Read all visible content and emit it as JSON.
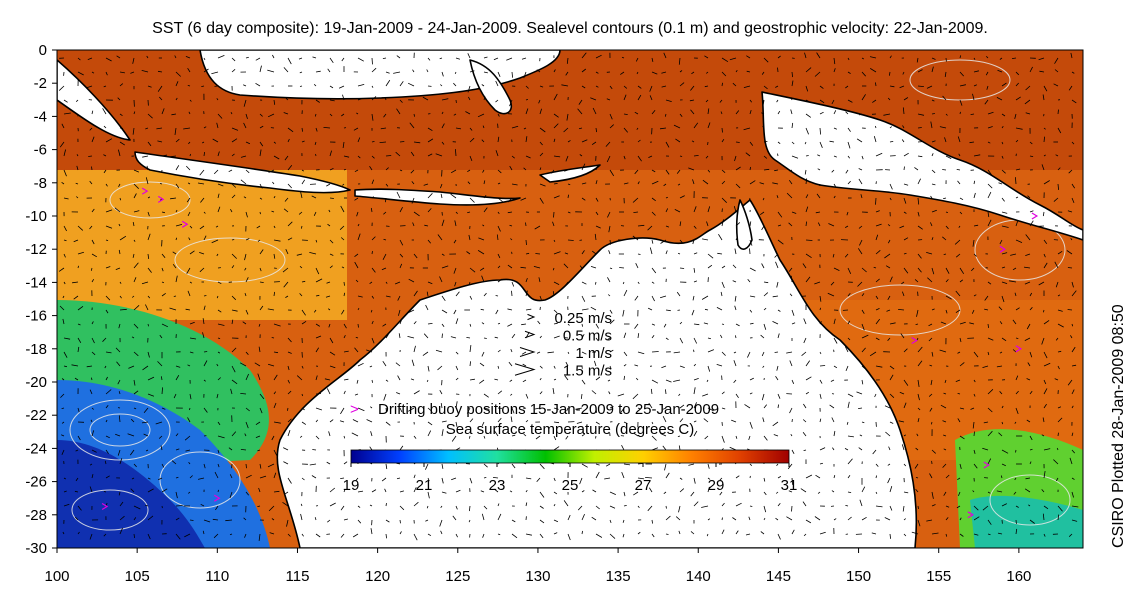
{
  "title": "SST (6 day composite): 19-Jan-2009 - 24-Jan-2009. Sealevel contours (0.1 m) and geostrophic velocity: 22-Jan-2009.",
  "side_note": "CSIRO Plotted 28-Jan-2009 08:50",
  "map": {
    "lon_range": [
      100,
      164
    ],
    "lat_range": [
      -30,
      0
    ],
    "x_ticks": [
      100,
      105,
      110,
      115,
      120,
      125,
      130,
      135,
      140,
      145,
      150,
      155,
      160
    ],
    "y_ticks": [
      0,
      -2,
      -4,
      -6,
      -8,
      -10,
      -12,
      -14,
      -16,
      -18,
      -20,
      -22,
      -24,
      -26,
      -28,
      -30
    ],
    "x_tick_labels": [
      "100",
      "105",
      "110",
      "115",
      "120",
      "125",
      "130",
      "135",
      "140",
      "145",
      "150",
      "155",
      "160"
    ],
    "y_tick_labels": [
      "0",
      "-2",
      "-4",
      "-6",
      "-8",
      "-10",
      "-12",
      "-14",
      "-16",
      "-18",
      "-20",
      "-22",
      "-24",
      "-26",
      "-28",
      "-30"
    ],
    "layers": [
      "sea-surface-temperature",
      "sea-level-contours",
      "geostrophic-velocity-arrows",
      "coastline",
      "drifting-buoys"
    ]
  },
  "velocity_legend": {
    "items": [
      {
        "label": "0.25 m/s",
        "speed": 0.25
      },
      {
        "label": "0.5 m/s",
        "speed": 0.5
      },
      {
        "label": "1 m/s",
        "speed": 1
      },
      {
        "label": "1.5 m/s",
        "speed": 1.5
      }
    ]
  },
  "buoy_legend": {
    "label": "Drifting buoy positions 15-Jan-2009 to 25-Jan-2009",
    "color": "#e000e0"
  },
  "colorbar": {
    "title": "Sea surface temperature (degrees C)",
    "range": [
      19,
      31
    ],
    "ticks": [
      19,
      21,
      23,
      25,
      27,
      29,
      31
    ],
    "tick_labels": [
      "19",
      "21",
      "23",
      "25",
      "27",
      "29",
      "31"
    ],
    "colors": [
      "#00008f",
      "#0040ff",
      "#00bfff",
      "#20e0a0",
      "#00c000",
      "#c0f000",
      "#ffd000",
      "#ff8000",
      "#e04000",
      "#a00000"
    ]
  },
  "colors": {
    "land": "#ffffff",
    "coast": "#000000",
    "contour": "#e8e8e8",
    "arrow": "#000000"
  }
}
